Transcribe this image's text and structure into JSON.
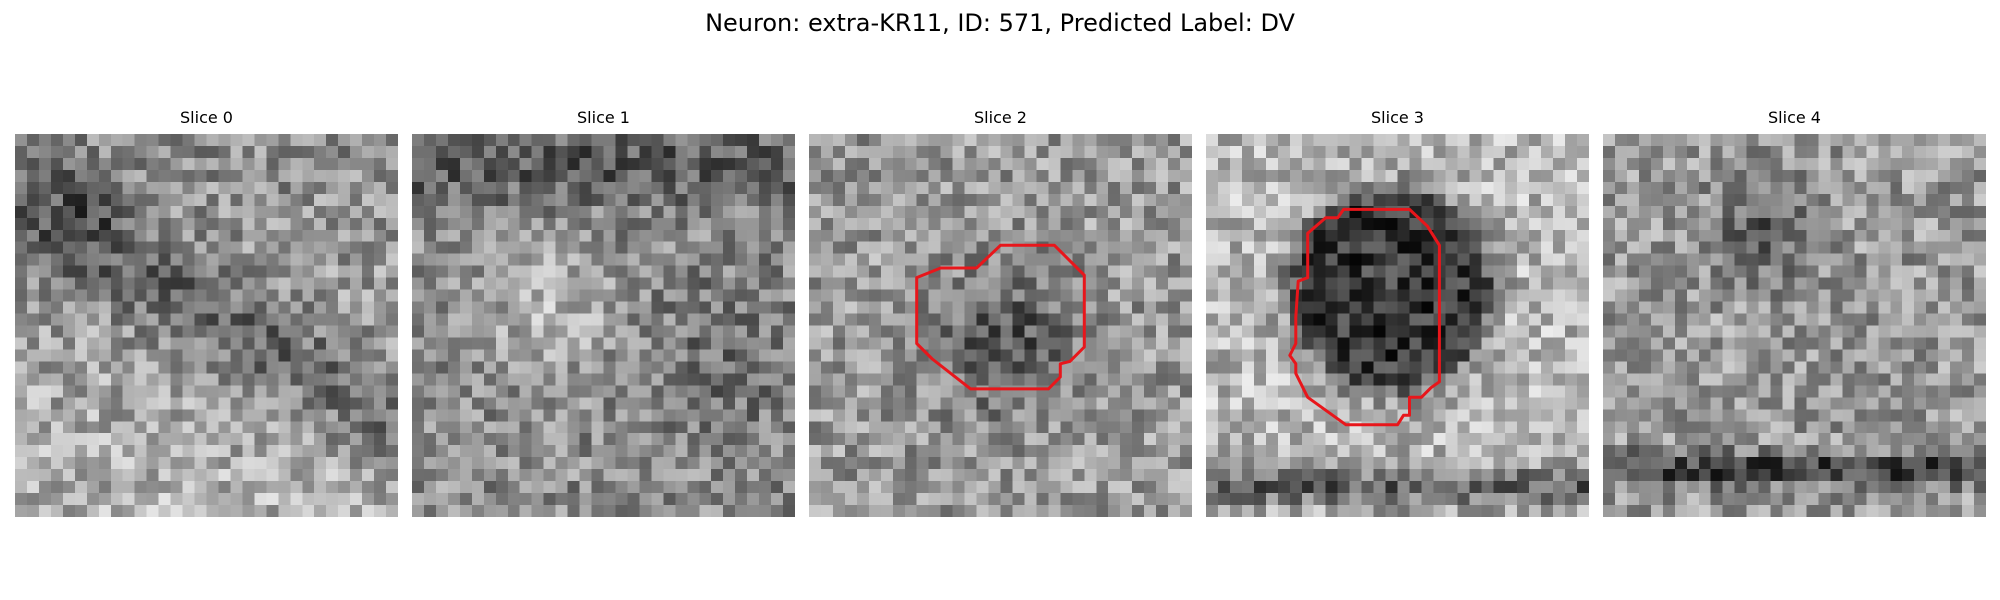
{
  "figure": {
    "title": "Neuron: extra-KR11, ID: 571, Predicted Label: DV"
  },
  "colors": {
    "contour": "#e8161b",
    "background": "#ffffff"
  },
  "panels": [
    {
      "title": "Slice 0",
      "has_contour": false
    },
    {
      "title": "Slice 1",
      "has_contour": false
    },
    {
      "title": "Slice 2",
      "has_contour": true
    },
    {
      "title": "Slice 3",
      "has_contour": true
    },
    {
      "title": "Slice 4",
      "has_contour": false
    }
  ]
}
